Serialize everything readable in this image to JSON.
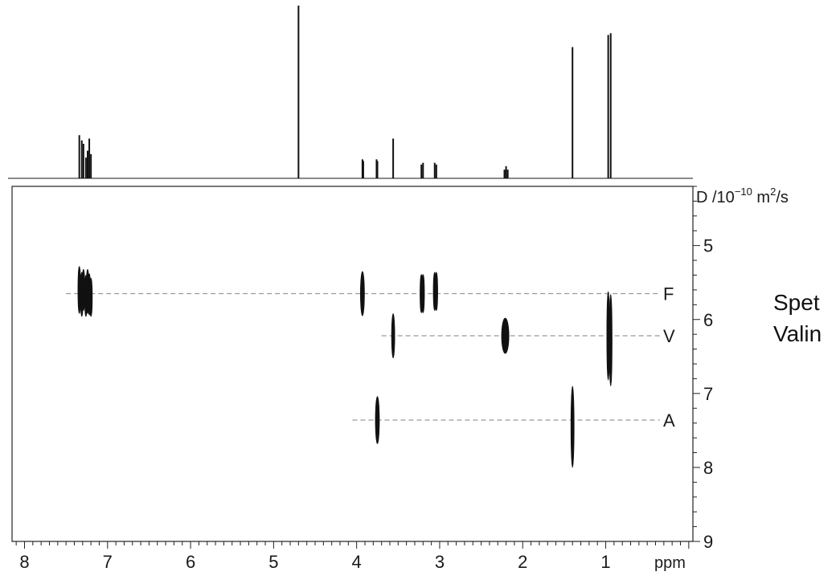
{
  "chart_data": {
    "type": "scatter",
    "subtype": "2D DOSY NMR spectrum",
    "x_axis": {
      "unit_label": "ppm",
      "range": [
        8.15,
        -0.05
      ],
      "reversed": true,
      "major_ticks": [
        8,
        7,
        6,
        5,
        4,
        3,
        2,
        1
      ],
      "minor_step": 0.1
    },
    "y_axis": {
      "label": "D /10",
      "label_exponent": "−10",
      "label_units": " m",
      "label_units_exponent": "2",
      "label_units_suffix": "/s",
      "range": [
        4.2,
        9.0
      ],
      "major_ticks": [
        5,
        6,
        7,
        8,
        9
      ],
      "minor_step": 0.2,
      "position": "right"
    },
    "top_projection": {
      "peaks": [
        {
          "ppm": 7.34,
          "height": 0.25
        },
        {
          "ppm": 7.31,
          "height": 0.22
        },
        {
          "ppm": 7.29,
          "height": 0.2
        },
        {
          "ppm": 7.26,
          "height": 0.12
        },
        {
          "ppm": 7.24,
          "height": 0.16
        },
        {
          "ppm": 7.22,
          "height": 0.23
        },
        {
          "ppm": 7.2,
          "height": 0.14
        },
        {
          "ppm": 4.7,
          "height": 1.0
        },
        {
          "ppm": 3.93,
          "height": 0.11
        },
        {
          "ppm": 3.92,
          "height": 0.1
        },
        {
          "ppm": 3.76,
          "height": 0.11
        },
        {
          "ppm": 3.75,
          "height": 0.1
        },
        {
          "ppm": 3.56,
          "height": 0.23
        },
        {
          "ppm": 3.22,
          "height": 0.08
        },
        {
          "ppm": 3.2,
          "height": 0.09
        },
        {
          "ppm": 3.06,
          "height": 0.09
        },
        {
          "ppm": 3.04,
          "height": 0.08
        },
        {
          "ppm": 2.22,
          "height": 0.05
        },
        {
          "ppm": 2.2,
          "height": 0.07
        },
        {
          "ppm": 2.18,
          "height": 0.05
        },
        {
          "ppm": 1.4,
          "height": 0.76
        },
        {
          "ppm": 0.97,
          "height": 0.83
        },
        {
          "ppm": 0.94,
          "height": 0.84
        }
      ]
    },
    "series": [
      {
        "name": "F",
        "D": 5.65,
        "line_from_ppm": 7.5,
        "line_to_ppm": 0.35
      },
      {
        "name": "V",
        "D": 6.22,
        "line_from_ppm": 3.7,
        "line_to_ppm": 0.35
      },
      {
        "name": "A",
        "D": 7.36,
        "line_from_ppm": 4.05,
        "line_to_ppm": 0.35
      }
    ],
    "cross_peaks": [
      {
        "ppm": 7.34,
        "D": 5.6,
        "dppm": 0.01,
        "dD": 0.32
      },
      {
        "ppm": 7.31,
        "D": 5.66,
        "dppm": 0.01,
        "dD": 0.3
      },
      {
        "ppm": 7.29,
        "D": 5.6,
        "dppm": 0.01,
        "dD": 0.28
      },
      {
        "ppm": 7.26,
        "D": 5.68,
        "dppm": 0.01,
        "dD": 0.28
      },
      {
        "ppm": 7.24,
        "D": 5.62,
        "dppm": 0.01,
        "dD": 0.3
      },
      {
        "ppm": 7.22,
        "D": 5.66,
        "dppm": 0.01,
        "dD": 0.28
      },
      {
        "ppm": 7.2,
        "D": 5.7,
        "dppm": 0.01,
        "dD": 0.26
      },
      {
        "ppm": 3.93,
        "D": 5.65,
        "dppm": 0.025,
        "dD": 0.3
      },
      {
        "ppm": 3.56,
        "D": 6.22,
        "dppm": 0.02,
        "dD": 0.3
      },
      {
        "ppm": 3.22,
        "D": 5.65,
        "dppm": 0.01,
        "dD": 0.26
      },
      {
        "ppm": 3.2,
        "D": 5.65,
        "dppm": 0.01,
        "dD": 0.26
      },
      {
        "ppm": 3.06,
        "D": 5.62,
        "dppm": 0.01,
        "dD": 0.26
      },
      {
        "ppm": 3.04,
        "D": 5.62,
        "dppm": 0.01,
        "dD": 0.26
      },
      {
        "ppm": 2.21,
        "D": 6.22,
        "dppm": 0.045,
        "dD": 0.24
      },
      {
        "ppm": 1.4,
        "D": 7.45,
        "dppm": 0.02,
        "dD": 0.55
      },
      {
        "ppm": 0.97,
        "D": 6.22,
        "dppm": 0.012,
        "dD": 0.6
      },
      {
        "ppm": 0.94,
        "D": 6.28,
        "dppm": 0.012,
        "dD": 0.62
      },
      {
        "ppm": 3.75,
        "D": 7.36,
        "dppm": 0.025,
        "dD": 0.32
      }
    ],
    "grid": false,
    "reference_line_color": "#999999",
    "mark_color": "#111111"
  },
  "side_text": {
    "line1": "Spet",
    "line2": "Valin"
  }
}
